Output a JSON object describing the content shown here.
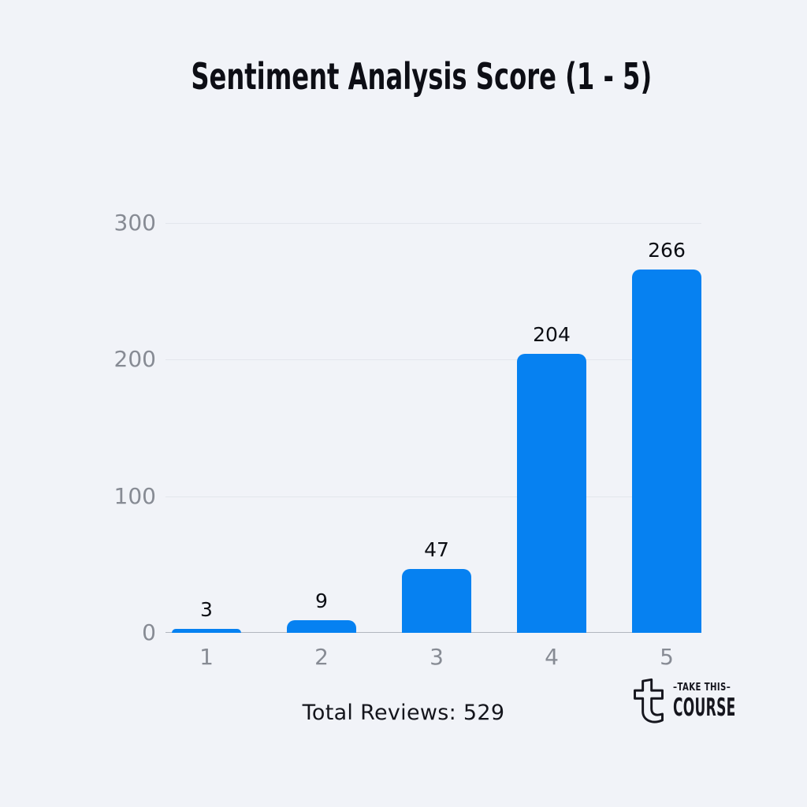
{
  "header": {
    "title": "Sentiment Analysis Score (1 - 5)"
  },
  "chart_data": {
    "type": "bar",
    "title": "Sentiment Analysis Score (1 - 5)",
    "categories": [
      "1",
      "2",
      "3",
      "4",
      "5"
    ],
    "values": [
      3,
      9,
      47,
      204,
      266
    ],
    "value_labels": [
      "3",
      "9",
      "47",
      "204",
      "266"
    ],
    "xlabel": "",
    "ylabel": "",
    "ylim": [
      0,
      300
    ],
    "yticks": [
      0,
      100,
      200,
      300
    ],
    "grid": true,
    "legend": "none",
    "bar_color": "#0681f1"
  },
  "footer": {
    "total_reviews": "Total Reviews: 529"
  },
  "brand": {
    "glyph": "t",
    "tagline": "–TAKE THIS–",
    "name": "COURSE"
  },
  "colors": {
    "background": "#f1f3f8",
    "bar": "#0681f1",
    "axis_label": "#878b94",
    "gridline": "#e3e6ec",
    "baseline": "#b2b6bf",
    "text_dark": "#0d0e15",
    "brand_ink": "#16161e"
  }
}
